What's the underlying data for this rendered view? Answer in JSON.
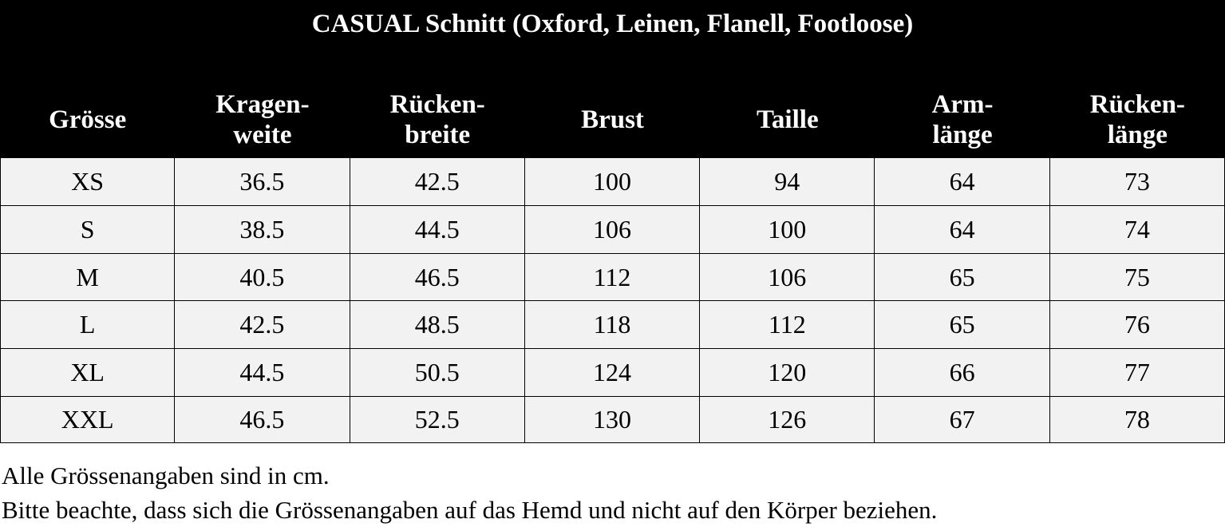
{
  "table": {
    "title": "CASUAL Schnitt (Oxford, Leinen, Flanell, Footloose)",
    "columns": [
      "Grösse",
      "Kragen-\nweite",
      "Rücken-\nbreite",
      "Brust",
      "Taille",
      "Arm-\nlänge",
      "Rücken-\nlänge"
    ],
    "rows": [
      [
        "XS",
        "36.5",
        "42.5",
        "100",
        "94",
        "64",
        "73"
      ],
      [
        "S",
        "38.5",
        "44.5",
        "106",
        "100",
        "64",
        "74"
      ],
      [
        "M",
        "40.5",
        "46.5",
        "112",
        "106",
        "65",
        "75"
      ],
      [
        "L",
        "42.5",
        "48.5",
        "118",
        "112",
        "65",
        "76"
      ],
      [
        "XL",
        "44.5",
        "50.5",
        "124",
        "120",
        "66",
        "77"
      ],
      [
        "XXL",
        "46.5",
        "52.5",
        "130",
        "126",
        "67",
        "78"
      ]
    ]
  },
  "notes": [
    "Alle Grössenangaben sind in cm.",
    "Bitte beachte, dass sich die Grössenangaben auf das Hemd und nicht auf den Körper beziehen."
  ]
}
